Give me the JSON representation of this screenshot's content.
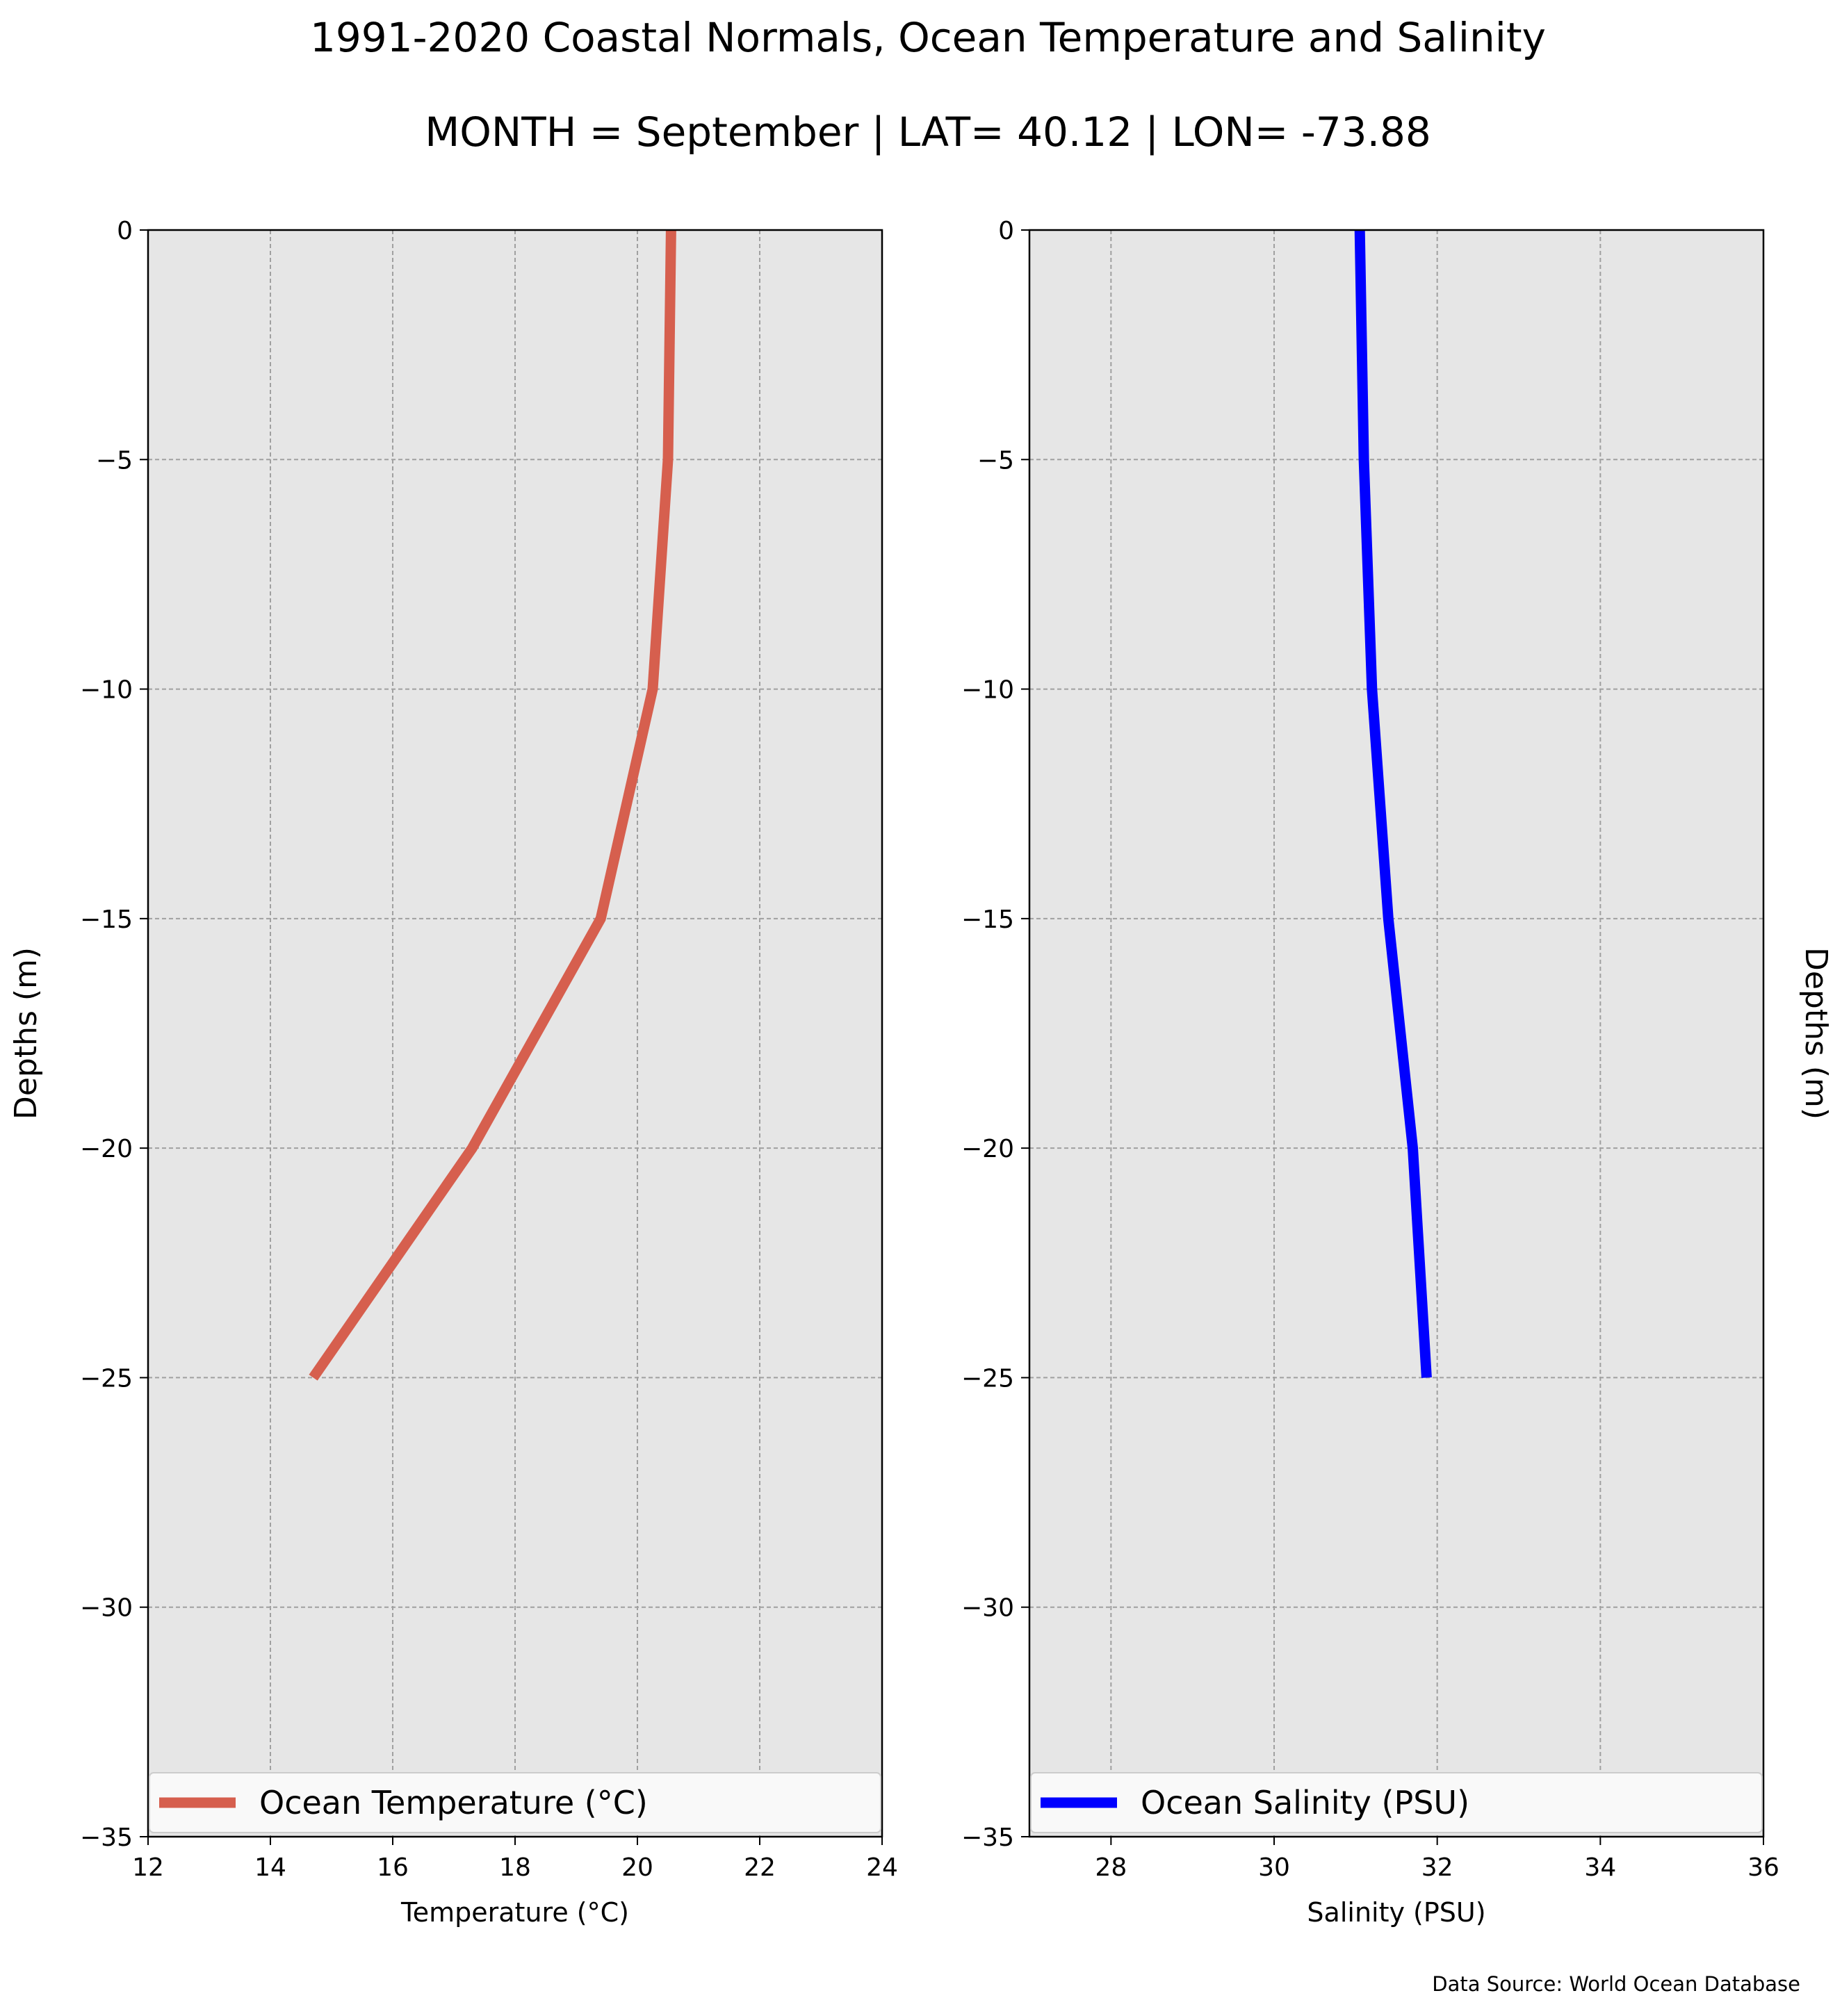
{
  "figure": {
    "title_line1": "1991-2020 Coastal Normals, Ocean Temperature and Salinity",
    "title_line2": "MONTH = September | LAT= 40.12 | LON= -73.88",
    "source": "Data Source: World Ocean Database",
    "panel_background": "#e6e6e6",
    "grid_color": "#a0a0a0"
  },
  "chart_data": [
    {
      "type": "line",
      "xlabel": "Temperature (°C)",
      "ylabel": "Depths (m)",
      "xlim": [
        12,
        24
      ],
      "ylim": [
        -35,
        0
      ],
      "xticks": [
        "12",
        "14",
        "16",
        "18",
        "20",
        "22",
        "24"
      ],
      "yticks": [
        "0",
        "−5",
        "−10",
        "−15",
        "−20",
        "−25",
        "−30",
        "−35"
      ],
      "grid": true,
      "legend_position": "bottom",
      "series": [
        {
          "name": "Ocean Temperature (°C)",
          "color": "#d65f4e",
          "x": [
            20.55,
            20.5,
            20.25,
            19.4,
            17.3,
            14.7
          ],
          "y": [
            0,
            -5,
            -10,
            -15,
            -20,
            -25
          ]
        }
      ]
    },
    {
      "type": "line",
      "xlabel": "Salinity (PSU)",
      "ylabel": "Depths (m)",
      "xlim": [
        27,
        36
      ],
      "ylim": [
        -35,
        0
      ],
      "xticks": [
        "28",
        "30",
        "32",
        "34",
        "36"
      ],
      "yticks": [
        "0",
        "−5",
        "−10",
        "−15",
        "−20",
        "−25",
        "−30",
        "−35"
      ],
      "grid": true,
      "legend_position": "bottom",
      "series": [
        {
          "name": "Ocean Salinity (PSU)",
          "color": "#0000ff",
          "x": [
            31.05,
            31.1,
            31.2,
            31.4,
            31.7,
            31.87
          ],
          "y": [
            0,
            -5,
            -10,
            -15,
            -20,
            -25
          ]
        }
      ]
    }
  ]
}
